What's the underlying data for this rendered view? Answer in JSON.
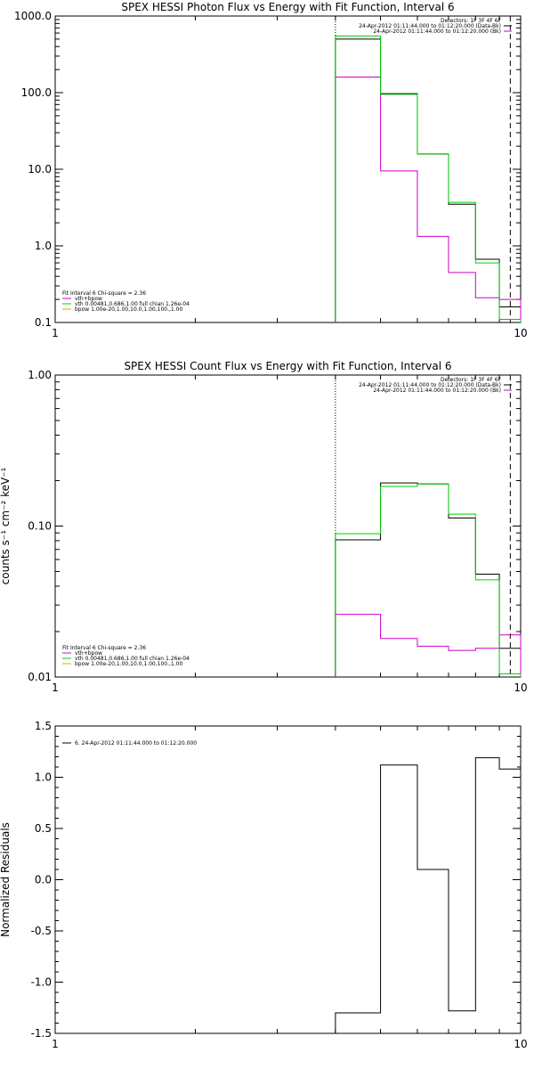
{
  "colors": {
    "data": "#000000",
    "total_fit": "#cc00cc",
    "vth": "#00cc00",
    "bpow": "#ddaa00",
    "background": "#ffffff"
  },
  "chart_data": [
    {
      "type": "line",
      "title": "SPEX HESSI Photon Flux vs Energy with Fit Function, Interval 6",
      "xlabel": "",
      "ylabel": "",
      "xscale": "log",
      "yscale": "log",
      "xlim": [
        1,
        10
      ],
      "ylim": [
        0.1,
        1000
      ],
      "xticks": [
        "1",
        "10"
      ],
      "yticks": [
        "0.1",
        "1.0",
        "10.0",
        "100.0",
        "1000.0"
      ],
      "bin_edges": [
        4.0,
        5.0,
        6.0,
        7.0,
        8.0,
        9.0,
        10.0
      ],
      "series": [
        {
          "name": "data",
          "color": "#000000",
          "values": [
            500,
            97,
            15.8,
            3.5,
            0.67,
            0.16
          ]
        },
        {
          "name": "vth+bpow",
          "color": "#cc00cc",
          "values": [
            160,
            9.5,
            1.33,
            0.45,
            0.21,
            0.2
          ]
        },
        {
          "name": "vth 0.00481,0.686,1.00 full chian 1.26e-04",
          "color": "#00cc00",
          "values": [
            550,
            95,
            15.8,
            3.7,
            0.6,
            0.11
          ]
        },
        {
          "name": "bpow 1.00e-20,1.00,10.0,1.00,100.,1.00",
          "color": "#ddaa00",
          "values": []
        }
      ],
      "vlines": [
        {
          "x": 4.0,
          "style": "dotted"
        },
        {
          "x": 9.5,
          "style": "dashed"
        }
      ],
      "legend": {
        "placement": "top-right",
        "lines": [
          "Detectors: 1F 3F 4F 6F",
          "24-Apr-2012 01:11:44.000 to 01:12:20.000 (Data-Bk)",
          "24-Apr-2012 01:11:44.000 to 01:12:20.000 (Bk)"
        ]
      },
      "fit_legend": {
        "placement": "bottom-left",
        "header": "Fit Interval 6   Chi-square = 2.36",
        "items": [
          "vth+bpow",
          "vth 0.00481,0.686,1.00  full chian 1.26e-04",
          "bpow 1.00e-20,1.00,10.0,1.00,100.,1.00"
        ]
      }
    },
    {
      "type": "line",
      "title": "SPEX HESSI Count Flux vs Energy with Fit Function, Interval 6",
      "xlabel": "",
      "ylabel": "counts s⁻¹ cm⁻² keV⁻¹",
      "xscale": "log",
      "yscale": "log",
      "xlim": [
        1,
        10
      ],
      "ylim": [
        0.01,
        1.0
      ],
      "xticks": [
        "1",
        "10"
      ],
      "yticks": [
        "0.01",
        "0.10",
        "1.00"
      ],
      "bin_edges": [
        4.0,
        5.0,
        6.0,
        7.0,
        8.0,
        9.0,
        10.0
      ],
      "series": [
        {
          "name": "data",
          "color": "#000000",
          "values": [
            0.081,
            0.193,
            0.19,
            0.113,
            0.048,
            0.0155
          ]
        },
        {
          "name": "vth+bpow",
          "color": "#cc00cc",
          "values": [
            0.026,
            0.018,
            0.016,
            0.015,
            0.0155,
            0.019
          ]
        },
        {
          "name": "vth 0.00481,0.686,1.00 full chian 1.26e-04",
          "color": "#00cc00",
          "values": [
            0.089,
            0.183,
            0.19,
            0.12,
            0.044,
            0.0105
          ]
        },
        {
          "name": "bpow 1.00e-20,1.00,10.0,1.00,100.,1.00",
          "color": "#ddaa00",
          "values": []
        }
      ],
      "vlines": [
        {
          "x": 4.0,
          "style": "dotted"
        },
        {
          "x": 9.5,
          "style": "dashed"
        }
      ],
      "legend": {
        "placement": "top-right",
        "lines": [
          "Detectors: 1F 3F 4F 6F",
          "24-Apr-2012 01:11:44.000 to 01:12:20.000 (Data-Bk)",
          "24-Apr-2012 01:11:44.000 to 01:12:20.000 (Bk)"
        ]
      },
      "fit_legend": {
        "placement": "bottom-left",
        "header": "Fit Interval 6   Chi-square = 2.36",
        "items": [
          "vth+bpow",
          "vth 0.00481,0.686,1.00  full chian 1.26e-04",
          "bpow 1.00e-20,1.00,10.0,1.00,100.,1.00"
        ]
      }
    },
    {
      "type": "line",
      "title": "",
      "xlabel": "",
      "ylabel": "Normalized Residuals",
      "xscale": "log",
      "yscale": "linear",
      "xlim": [
        1,
        10
      ],
      "ylim": [
        -1.5,
        1.5
      ],
      "xticks": [
        "1",
        "10"
      ],
      "yticks": [
        "-1.5",
        "-1.0",
        "-0.5",
        "0.0",
        "0.5",
        "1.0",
        "1.5"
      ],
      "bin_edges": [
        4.0,
        5.0,
        6.0,
        7.0,
        8.0,
        9.0,
        10.0
      ],
      "series": [
        {
          "name": "6. 24-Apr-2012 01:11:44.000 to 01:12:20.000",
          "color": "#000000",
          "values": [
            -1.3,
            1.12,
            0.1,
            -1.28,
            1.19,
            1.08
          ]
        }
      ],
      "legend": {
        "placement": "top-left",
        "lines": [
          "6. 24-Apr-2012 01:11:44.000 to 01:12:20.000"
        ]
      }
    }
  ]
}
